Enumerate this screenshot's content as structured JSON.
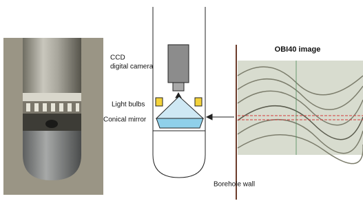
{
  "labels": {
    "camera": [
      "CCD",
      "digital camera"
    ],
    "light_bulbs": "Light bulbs",
    "conical_mirror": "Conical mirror",
    "image_title": "OBI40 image",
    "borehole_wall": "Borehole wall"
  }
}
